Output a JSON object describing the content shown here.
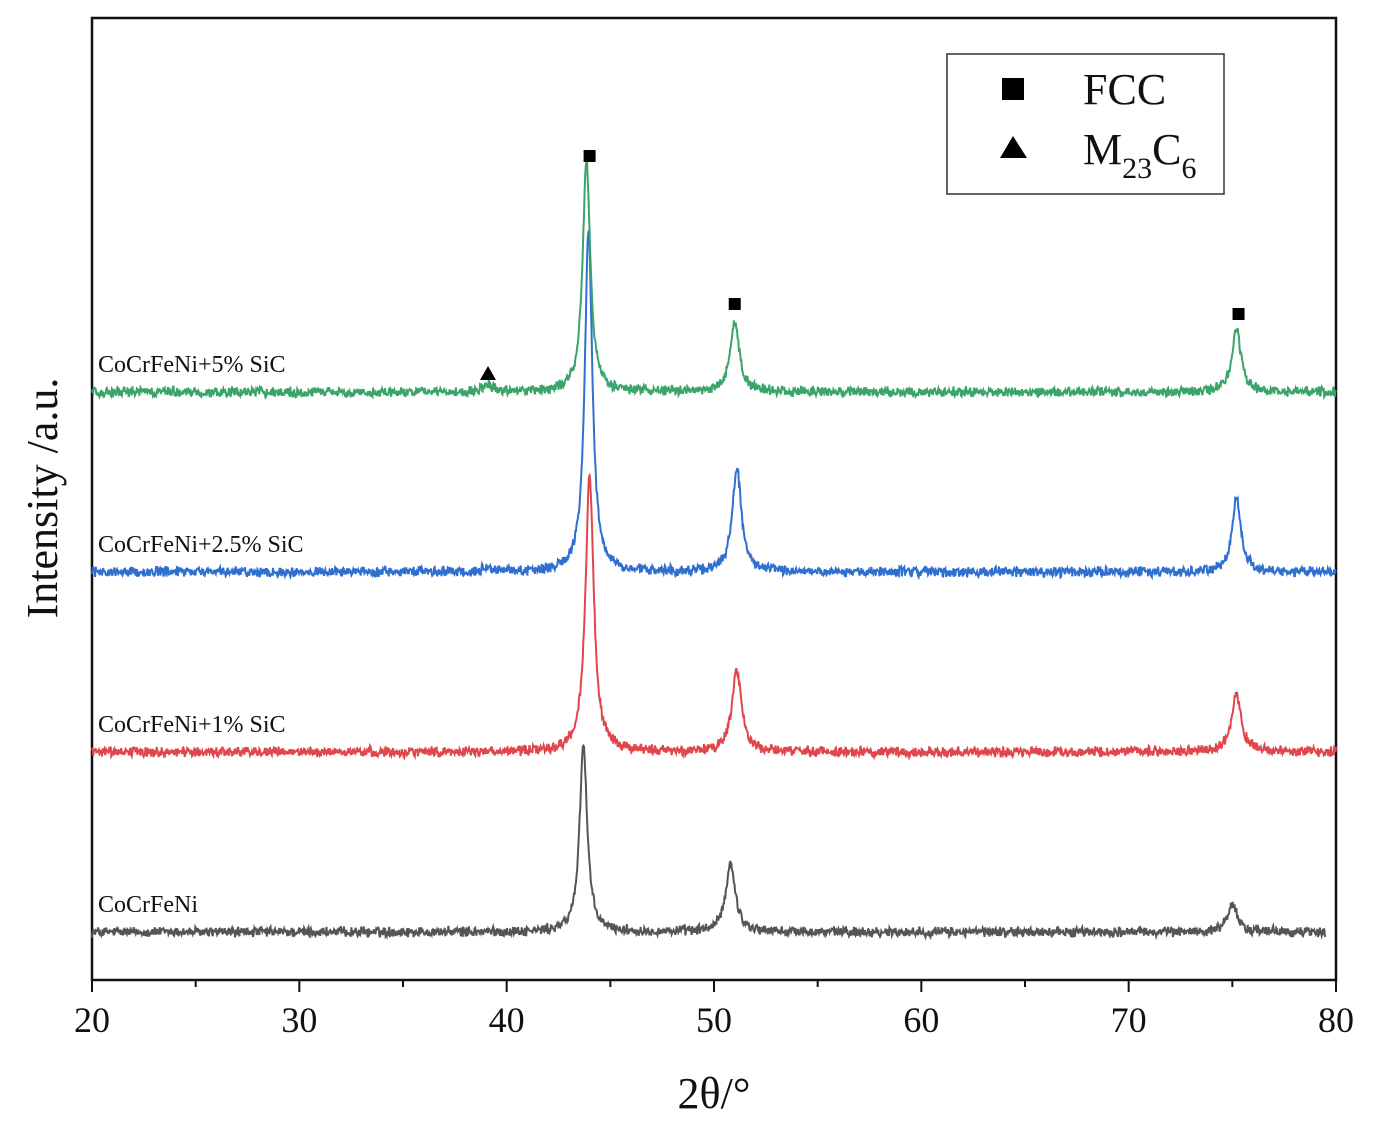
{
  "chart_data": {
    "type": "line",
    "xlabel": "2θ/°",
    "ylabel": "Intensity /a.u.",
    "xlim": [
      20,
      80
    ],
    "x_ticks": [
      20,
      30,
      40,
      50,
      60,
      70,
      80
    ],
    "y_ticks_shown": false,
    "legend": {
      "placement": "top-right",
      "entries": [
        {
          "marker": "square",
          "label": "FCC"
        },
        {
          "marker": "triangle",
          "label_main": "M",
          "sub1": "23",
          "label_mid": "C",
          "sub2": "6"
        }
      ]
    },
    "series": [
      {
        "name": "CoCrFeNi",
        "color": "#555555",
        "offset": 0,
        "x_end": 79.5,
        "peaks": [
          {
            "x": 43.7,
            "height": 94,
            "width": 0.22
          },
          {
            "x": 50.8,
            "height": 34,
            "width": 0.28
          },
          {
            "x": 75.0,
            "height": 14,
            "width": 0.28
          }
        ]
      },
      {
        "name": "CoCrFeNi+1% SiC",
        "color": "#e0474c",
        "offset": 90,
        "x_end": 80,
        "peaks": [
          {
            "x": 44.0,
            "height": 138,
            "width": 0.24
          },
          {
            "x": 51.1,
            "height": 41,
            "width": 0.28
          },
          {
            "x": 75.2,
            "height": 29,
            "width": 0.28
          }
        ]
      },
      {
        "name": "CoCrFeNi+2.5% SiC",
        "color": "#2f6fd0",
        "offset": 180,
        "x_end": 80,
        "peaks": [
          {
            "x": 43.95,
            "height": 170,
            "width": 0.22
          },
          {
            "x": 51.1,
            "height": 52,
            "width": 0.26
          },
          {
            "x": 75.2,
            "height": 37,
            "width": 0.26
          },
          {
            "x": 39.1,
            "height": 3,
            "width": 0.25
          }
        ]
      },
      {
        "name": "CoCrFeNi+5% SiC",
        "color": "#3aa46a",
        "offset": 270,
        "x_end": 80,
        "peaks": [
          {
            "x": 43.85,
            "height": 116,
            "width": 0.22
          },
          {
            "x": 51.0,
            "height": 35,
            "width": 0.26
          },
          {
            "x": 75.2,
            "height": 32,
            "width": 0.26
          },
          {
            "x": 39.1,
            "height": 4,
            "width": 0.25
          }
        ]
      }
    ],
    "annotations": [
      {
        "marker": "square",
        "x": 44.0,
        "level": 388
      },
      {
        "marker": "square",
        "x": 51.0,
        "level": 314
      },
      {
        "marker": "square",
        "x": 75.3,
        "level": 309
      },
      {
        "marker": "triangle",
        "x": 39.1,
        "level": 279
      }
    ],
    "grid": false
  }
}
